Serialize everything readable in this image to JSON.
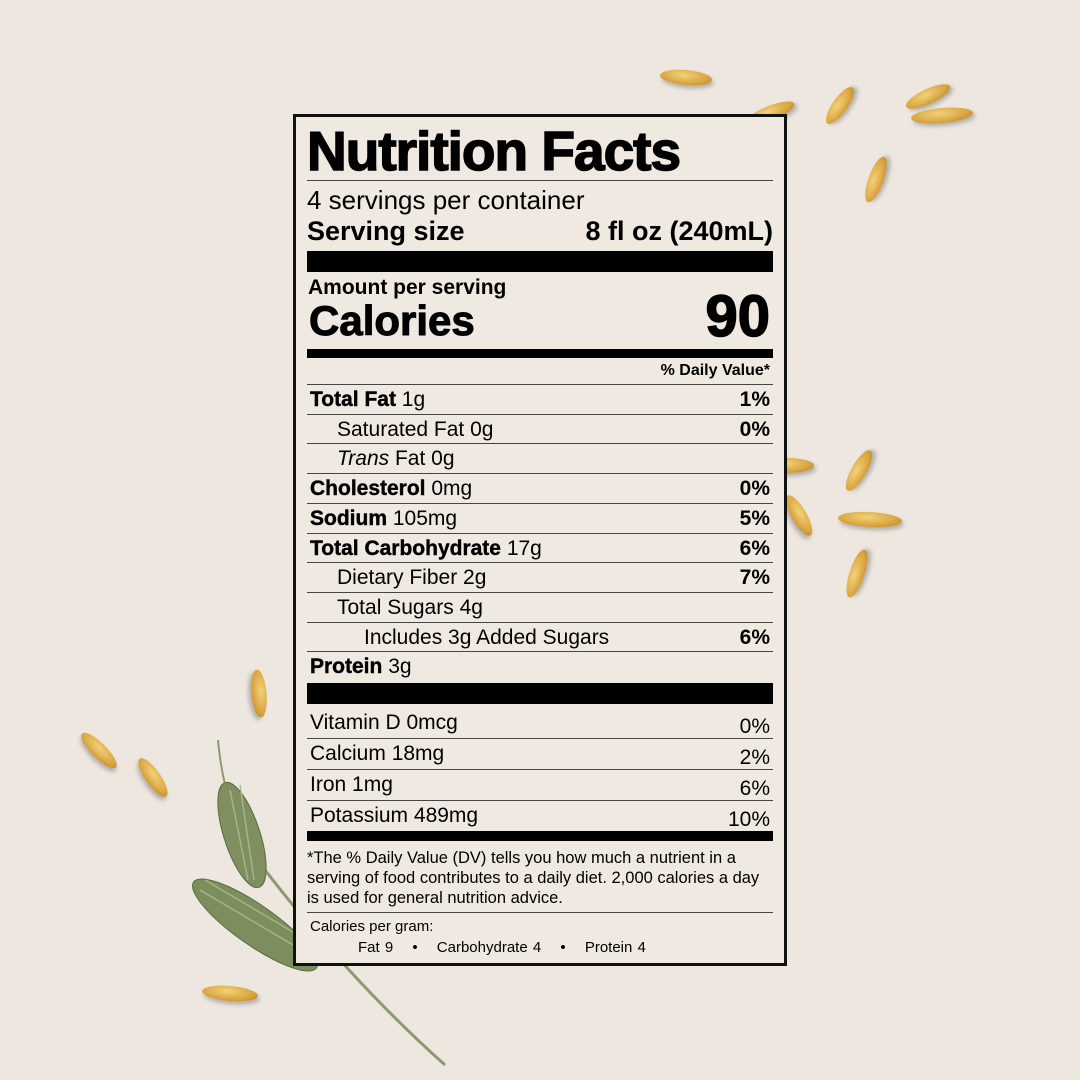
{
  "title": "Nutrition Facts",
  "servings_per_container": "4 servings per container",
  "serving_size_label": "Serving size",
  "serving_size_value": "8 fl oz (240mL)",
  "amount_per_serving": "Amount per serving",
  "calories_label": "Calories",
  "calories_value": "90",
  "dv_header": "% Daily Value*",
  "nutrients": [
    {
      "name": "Total Fat",
      "amount": "1g",
      "dv": "1%"
    },
    {
      "name": "Saturated Fat",
      "amount": "0g",
      "dv": "0%"
    },
    {
      "name_italic": "Trans",
      "name": "Fat",
      "amount": "0g",
      "dv": ""
    },
    {
      "name": "Cholesterol",
      "amount": "0mg",
      "dv": "0%"
    },
    {
      "name": "Sodium",
      "amount": "105mg",
      "dv": "5%"
    },
    {
      "name": "Total Carbohydrate",
      "amount": "17g",
      "dv": "6%"
    },
    {
      "name": "Dietary Fiber",
      "amount": "2g",
      "dv": "7%"
    },
    {
      "name": "Total Sugars",
      "amount": "4g",
      "dv": ""
    },
    {
      "name": "Includes 3g Added Sugars",
      "amount": "",
      "dv": "6%"
    },
    {
      "name": "Protein",
      "amount": "3g",
      "dv": ""
    }
  ],
  "vitamins": [
    {
      "name": "Vitamin D",
      "amount": "0mcg",
      "dv": "0%"
    },
    {
      "name": "Calcium",
      "amount": "18mg",
      "dv": "2%"
    },
    {
      "name": "Iron",
      "amount": "1mg",
      "dv": "6%"
    },
    {
      "name": "Potassium",
      "amount": "489mg",
      "dv": "10%"
    }
  ],
  "footnote": "*The % Daily Value (DV) tells you how much a nutrient in a serving of food contributes to a daily diet. 2,000 calories a day is used for general nutrition advice.",
  "calories_per_gram": {
    "label": "Calories per gram:",
    "fat": "Fat 9",
    "carb": "Carbohydrate 4",
    "protein": "Protein 4",
    "separator": "•"
  }
}
